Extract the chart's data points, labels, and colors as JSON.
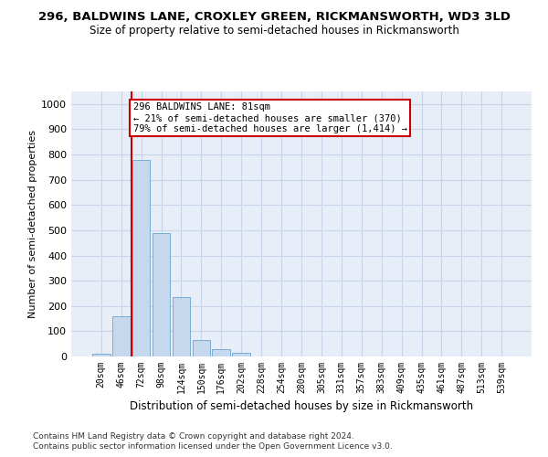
{
  "title1": "296, BALDWINS LANE, CROXLEY GREEN, RICKMANSWORTH, WD3 3LD",
  "title2": "Size of property relative to semi-detached houses in Rickmansworth",
  "xlabel": "Distribution of semi-detached houses by size in Rickmansworth",
  "ylabel": "Number of semi-detached properties",
  "categories": [
    "20sqm",
    "46sqm",
    "72sqm",
    "98sqm",
    "124sqm",
    "150sqm",
    "176sqm",
    "202sqm",
    "228sqm",
    "254sqm",
    "280sqm",
    "305sqm",
    "331sqm",
    "357sqm",
    "383sqm",
    "409sqm",
    "435sqm",
    "461sqm",
    "487sqm",
    "513sqm",
    "539sqm"
  ],
  "values": [
    10,
    160,
    780,
    490,
    235,
    65,
    30,
    14,
    0,
    0,
    0,
    0,
    0,
    0,
    0,
    0,
    0,
    0,
    0,
    0,
    0
  ],
  "bar_color": "#c5d8ee",
  "bar_edge_color": "#7aadd4",
  "property_line_color": "#cc0000",
  "annotation_text": "296 BALDWINS LANE: 81sqm\n← 21% of semi-detached houses are smaller (370)\n79% of semi-detached houses are larger (1,414) →",
  "annotation_box_color": "#ffffff",
  "annotation_box_edge_color": "#cc0000",
  "ylim": [
    0,
    1050
  ],
  "yticks": [
    0,
    100,
    200,
    300,
    400,
    500,
    600,
    700,
    800,
    900,
    1000
  ],
  "grid_color": "#c8d4e8",
  "background_color": "#e8eef8",
  "footer1": "Contains HM Land Registry data © Crown copyright and database right 2024.",
  "footer2": "Contains public sector information licensed under the Open Government Licence v3.0."
}
